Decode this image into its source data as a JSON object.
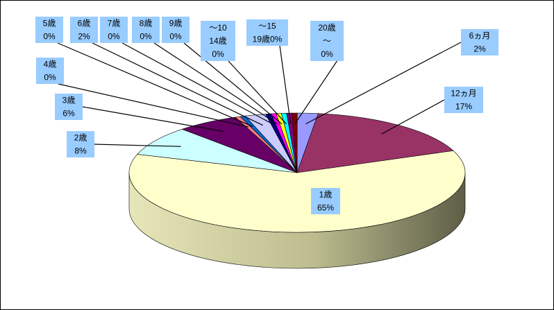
{
  "chart_data": {
    "type": "pie",
    "style": "3d",
    "categories": [
      "6ヵ月",
      "12ヵ月",
      "1歳",
      "2歳",
      "3歳",
      "4歳",
      "5歳",
      "6歳",
      "7歳",
      "8歳",
      "9歳",
      "～10\n14歳",
      "～15\n19歳",
      "20歳\n～"
    ],
    "values": [
      2,
      17,
      65,
      8,
      6,
      0,
      0,
      2,
      0,
      0,
      0,
      0,
      0,
      0
    ],
    "labels": [
      "6ヵ月\n2%",
      "12ヵ月\n17%",
      "1歳\n65%",
      "2歳\n8%",
      "3歳\n6%",
      "4歳\n0%",
      "5歳\n0%",
      "6歳\n2%",
      "7歳\n0%",
      "8歳\n0%",
      "9歳\n0%",
      "～10\n14歳\n0%",
      "～15\n19歳0%",
      "20歳\n～\n0%"
    ],
    "colors": [
      "#9999ff",
      "#993366",
      "#ffffcc",
      "#ccffff",
      "#660066",
      "#ff8080",
      "#0066cc",
      "#ccccff",
      "#000080",
      "#ff00ff",
      "#ffff00",
      "#00ffff",
      "#800080",
      "#800000"
    ],
    "label_box_color": "#99ccff",
    "leader_line_color": "#000000",
    "legend": "none",
    "title": ""
  }
}
